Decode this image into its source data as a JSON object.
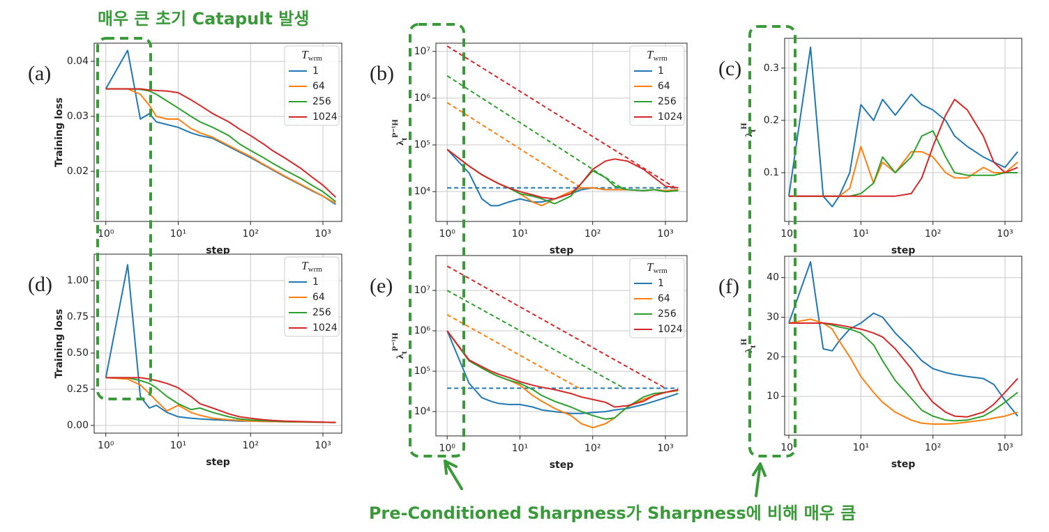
{
  "annotations": {
    "top": "매우 큰 초기 Catapult 발생",
    "bottom": "Pre-Conditioned Sharpness가 Sharpness에 비해 매우 큼"
  },
  "chart_data": [
    {
      "type": "line",
      "panel_label": "(a)",
      "xlabel": "step",
      "ylabel": "Training loss",
      "xscale": "log",
      "grid": true,
      "xlim": [
        0.69,
        1820
      ],
      "xticks": [
        {
          "value": 1,
          "label": "10⁰"
        },
        {
          "value": 10,
          "label": "10¹"
        },
        {
          "value": 100,
          "label": "10²"
        },
        {
          "value": 1000,
          "label": "10³"
        }
      ],
      "ylim": [
        0.0109,
        0.0433
      ],
      "yticks": [
        0.02,
        0.03,
        0.04
      ],
      "legend_title": "T",
      "legend_title_sub": "wrm",
      "x": [
        1,
        2,
        3,
        4,
        5,
        7,
        10,
        15,
        20,
        30,
        50,
        70,
        100,
        150,
        200,
        300,
        500,
        700,
        1000,
        1500
      ],
      "series": [
        {
          "name": "1",
          "color": "#1f77b4",
          "values": [
            0.035,
            0.042,
            0.0295,
            0.0305,
            0.029,
            0.0285,
            0.028,
            0.027,
            0.0265,
            0.026,
            0.0245,
            0.0235,
            0.0225,
            0.0212,
            0.0203,
            0.019,
            0.0175,
            0.0165,
            0.0155,
            0.014
          ]
        },
        {
          "name": "64",
          "color": "#ff7f0e",
          "values": [
            0.035,
            0.035,
            0.034,
            0.032,
            0.03,
            0.0295,
            0.0295,
            0.0278,
            0.027,
            0.0262,
            0.0247,
            0.0237,
            0.0227,
            0.0213,
            0.0204,
            0.0191,
            0.0176,
            0.0166,
            0.0155,
            0.0142
          ]
        },
        {
          "name": "256",
          "color": "#2ca02c",
          "values": [
            0.035,
            0.035,
            0.0349,
            0.0346,
            0.034,
            0.0328,
            0.0315,
            0.03,
            0.029,
            0.028,
            0.0265,
            0.025,
            0.0238,
            0.0225,
            0.0215,
            0.0202,
            0.0187,
            0.0175,
            0.0163,
            0.0145
          ]
        },
        {
          "name": "1024",
          "color": "#d62728",
          "values": [
            0.035,
            0.035,
            0.035,
            0.0348,
            0.0347,
            0.0346,
            0.0343,
            0.033,
            0.032,
            0.0305,
            0.029,
            0.0277,
            0.0265,
            0.025,
            0.0238,
            0.0224,
            0.0205,
            0.019,
            0.0175,
            0.0153
          ]
        }
      ]
    },
    {
      "type": "line",
      "panel_label": "(b)",
      "xlabel": "step",
      "ylabel": {
        "base": "λ",
        "sub": "t",
        "sup": "P⁻¹H"
      },
      "xscale": "log",
      "yscale": "log",
      "grid": true,
      "xlim": [
        0.7,
        1980
      ],
      "xticks": [
        {
          "value": 1,
          "label": "10⁰"
        },
        {
          "value": 10,
          "label": "10¹"
        },
        {
          "value": 100,
          "label": "10²"
        },
        {
          "value": 1000,
          "label": "10³"
        }
      ],
      "ylim": [
        2300,
        15000000
      ],
      "yticks": [
        {
          "value": 10000,
          "label": "10⁴"
        },
        {
          "value": 100000,
          "label": "10⁵"
        },
        {
          "value": 1000000,
          "label": "10⁶"
        },
        {
          "value": 10000000,
          "label": "10⁷"
        }
      ],
      "legend_title": "T",
      "legend_title_sub": "wrm",
      "x": [
        1,
        2,
        3,
        4,
        5,
        7,
        10,
        15,
        20,
        30,
        50,
        70,
        100,
        150,
        200,
        300,
        500,
        700,
        1000,
        1500
      ],
      "series": [
        {
          "name": "1",
          "color": "#1f77b4",
          "values": [
            80000,
            25000,
            7000,
            5000,
            5000,
            6000,
            7000,
            6000,
            6000,
            7000,
            9000,
            11000,
            12000,
            11000,
            11000,
            11000,
            10500,
            11000,
            10500,
            11000
          ]
        },
        {
          "name": "64",
          "color": "#ff7f0e",
          "values": [
            80000,
            35000,
            23000,
            18000,
            15000,
            12000,
            9000,
            6000,
            5000,
            7000,
            10000,
            12000,
            12000,
            11000,
            11000,
            11000,
            10500,
            11000,
            10500,
            11000
          ]
        },
        {
          "name": "256",
          "color": "#2ca02c",
          "values": [
            80000,
            35000,
            23000,
            18000,
            15000,
            12000,
            9000,
            8000,
            7000,
            5500,
            8000,
            15000,
            28000,
            20000,
            13000,
            11000,
            10500,
            11000,
            10000,
            10500
          ]
        },
        {
          "name": "1024",
          "color": "#d62728",
          "values": [
            80000,
            35000,
            23000,
            18000,
            15000,
            12000,
            10000,
            8500,
            7500,
            7000,
            9000,
            15000,
            30000,
            45000,
            50000,
            45000,
            30000,
            20000,
            13000,
            12000
          ]
        }
      ],
      "reference_lines": [
        {
          "color": "#1f77b4",
          "x": [
            1,
            1500
          ],
          "values": [
            12000,
            12000
          ]
        },
        {
          "color": "#ff7f0e",
          "x": [
            1,
            70
          ],
          "values": [
            800000,
            12000
          ]
        },
        {
          "color": "#2ca02c",
          "x": [
            1,
            250
          ],
          "values": [
            3000000,
            12000
          ]
        },
        {
          "color": "#d62728",
          "x": [
            1,
            1500
          ],
          "values": [
            13000000,
            11000
          ]
        }
      ]
    },
    {
      "type": "line",
      "panel_label": "(c)",
      "xlabel": "step",
      "ylabel": {
        "base": "λ",
        "sub": "t",
        "sup": "H"
      },
      "xscale": "log",
      "grid": true,
      "xlim": [
        0.875,
        1710
      ],
      "xticks": [
        {
          "value": 1,
          "label": "10⁰"
        },
        {
          "value": 10,
          "label": "10¹"
        },
        {
          "value": 100,
          "label": "10²"
        },
        {
          "value": 1000,
          "label": "10³"
        }
      ],
      "ylim": [
        0.0067,
        0.357
      ],
      "yticks": [
        0.1,
        0.2,
        0.3
      ],
      "x": [
        1,
        2,
        3,
        4,
        5,
        7,
        10,
        15,
        20,
        30,
        50,
        70,
        100,
        150,
        200,
        300,
        500,
        700,
        1000,
        1500
      ],
      "series": [
        {
          "name": "1",
          "color": "#1f77b4",
          "values": [
            0.055,
            0.34,
            0.055,
            0.035,
            0.055,
            0.1,
            0.23,
            0.2,
            0.24,
            0.21,
            0.25,
            0.23,
            0.22,
            0.2,
            0.17,
            0.15,
            0.13,
            0.12,
            0.11,
            0.14
          ]
        },
        {
          "name": "64",
          "color": "#ff7f0e",
          "values": [
            0.055,
            0.055,
            0.055,
            0.055,
            0.055,
            0.07,
            0.15,
            0.08,
            0.12,
            0.1,
            0.14,
            0.14,
            0.13,
            0.1,
            0.09,
            0.09,
            0.11,
            0.1,
            0.1,
            0.12
          ]
        },
        {
          "name": "256",
          "color": "#2ca02c",
          "values": [
            0.055,
            0.055,
            0.055,
            0.055,
            0.055,
            0.055,
            0.06,
            0.08,
            0.13,
            0.1,
            0.13,
            0.17,
            0.18,
            0.13,
            0.1,
            0.095,
            0.095,
            0.095,
            0.1,
            0.1
          ]
        },
        {
          "name": "1024",
          "color": "#d62728",
          "values": [
            0.055,
            0.055,
            0.055,
            0.055,
            0.055,
            0.055,
            0.055,
            0.055,
            0.055,
            0.055,
            0.06,
            0.09,
            0.15,
            0.21,
            0.24,
            0.22,
            0.17,
            0.12,
            0.1,
            0.11
          ]
        }
      ]
    },
    {
      "type": "line",
      "panel_label": "(d)",
      "xlabel": "step",
      "ylabel": "Training loss",
      "xscale": "log",
      "grid": true,
      "xlim": [
        0.69,
        1820
      ],
      "xticks": [
        {
          "value": 1,
          "label": "10⁰"
        },
        {
          "value": 10,
          "label": "10¹"
        },
        {
          "value": 100,
          "label": "10²"
        },
        {
          "value": 1000,
          "label": "10³"
        }
      ],
      "ylim": [
        -0.053,
        1.183
      ],
      "yticks": [
        {
          "value": 0,
          "label": "0.00"
        },
        0.25,
        {
          "value": 0.5,
          "label": "0.50"
        },
        0.75,
        {
          "value": 1,
          "label": "1.00"
        }
      ],
      "legend_title": "T",
      "legend_title_sub": "wrm",
      "x": [
        1,
        2,
        3,
        4,
        5,
        7,
        10,
        15,
        20,
        30,
        50,
        70,
        100,
        150,
        200,
        300,
        500,
        700,
        1000,
        1500
      ],
      "series": [
        {
          "name": "1",
          "color": "#1f77b4",
          "values": [
            0.33,
            1.11,
            0.2,
            0.12,
            0.14,
            0.09,
            0.06,
            0.05,
            0.045,
            0.04,
            0.035,
            0.03,
            0.03,
            0.028,
            0.027,
            0.025,
            0.024,
            0.023,
            0.022,
            0.02
          ]
        },
        {
          "name": "64",
          "color": "#ff7f0e",
          "values": [
            0.33,
            0.32,
            0.28,
            0.22,
            0.17,
            0.1,
            0.14,
            0.09,
            0.07,
            0.05,
            0.04,
            0.035,
            0.03,
            0.028,
            0.027,
            0.025,
            0.024,
            0.023,
            0.022,
            0.02
          ]
        },
        {
          "name": "256",
          "color": "#2ca02c",
          "values": [
            0.33,
            0.33,
            0.31,
            0.29,
            0.26,
            0.2,
            0.15,
            0.11,
            0.12,
            0.09,
            0.06,
            0.045,
            0.038,
            0.033,
            0.03,
            0.027,
            0.025,
            0.024,
            0.022,
            0.02
          ]
        },
        {
          "name": "1024",
          "color": "#d62728",
          "values": [
            0.33,
            0.33,
            0.33,
            0.32,
            0.31,
            0.29,
            0.26,
            0.2,
            0.15,
            0.12,
            0.08,
            0.06,
            0.05,
            0.04,
            0.035,
            0.03,
            0.027,
            0.025,
            0.023,
            0.021
          ]
        }
      ]
    },
    {
      "type": "line",
      "panel_label": "(e)",
      "xlabel": "step",
      "ylabel": {
        "base": "λ",
        "sub": "t",
        "sup": "P⁻¹H"
      },
      "xscale": "log",
      "yscale": "log",
      "grid": true,
      "xlim": [
        0.7,
        1980
      ],
      "xticks": [
        {
          "value": 1,
          "label": "10⁰"
        },
        {
          "value": 10,
          "label": "10¹"
        },
        {
          "value": 100,
          "label": "10²"
        },
        {
          "value": 1000,
          "label": "10³"
        }
      ],
      "ylim": [
        2500,
        73000000
      ],
      "yticks": [
        {
          "value": 10000,
          "label": "10⁴"
        },
        {
          "value": 100000,
          "label": "10⁵"
        },
        {
          "value": 1000000,
          "label": "10⁶"
        },
        {
          "value": 10000000,
          "label": "10⁷"
        }
      ],
      "legend_title": "T",
      "legend_title_sub": "wrm",
      "x": [
        1,
        2,
        3,
        4,
        5,
        7,
        10,
        15,
        20,
        30,
        50,
        70,
        100,
        150,
        200,
        300,
        500,
        700,
        1000,
        1500
      ],
      "series": [
        {
          "name": "1",
          "color": "#1f77b4",
          "values": [
            1000000,
            50000,
            22000,
            18000,
            16000,
            15000,
            15000,
            13000,
            11000,
            10000,
            9000,
            9000,
            9500,
            10000,
            11000,
            12000,
            15000,
            18000,
            22000,
            28000
          ]
        },
        {
          "name": "64",
          "color": "#ff7f0e",
          "values": [
            1000000,
            180000,
            120000,
            90000,
            75000,
            60000,
            45000,
            25000,
            18000,
            12000,
            8000,
            5000,
            4000,
            5000,
            7000,
            13000,
            20000,
            25000,
            30000,
            33000
          ]
        },
        {
          "name": "256",
          "color": "#2ca02c",
          "values": [
            1000000,
            180000,
            120000,
            90000,
            75000,
            60000,
            50000,
            35000,
            25000,
            18000,
            13000,
            10000,
            8000,
            6500,
            7000,
            13000,
            23000,
            28000,
            30000,
            34000
          ]
        },
        {
          "name": "1024",
          "color": "#d62728",
          "values": [
            1000000,
            190000,
            130000,
            100000,
            85000,
            70000,
            55000,
            45000,
            40000,
            35000,
            28000,
            23000,
            20000,
            17000,
            13000,
            14000,
            18000,
            25000,
            30000,
            35000
          ]
        }
      ],
      "reference_lines": [
        {
          "color": "#1f77b4",
          "x": [
            1,
            1500
          ],
          "values": [
            38000,
            38000
          ]
        },
        {
          "color": "#ff7f0e",
          "x": [
            1,
            65
          ],
          "values": [
            2500000,
            38000
          ]
        },
        {
          "color": "#2ca02c",
          "x": [
            1,
            270
          ],
          "values": [
            10000000,
            38000
          ]
        },
        {
          "color": "#d62728",
          "x": [
            1,
            1000
          ],
          "values": [
            40000000,
            38000
          ]
        }
      ]
    },
    {
      "type": "line",
      "panel_label": "(f)",
      "xlabel": "step",
      "ylabel": {
        "base": "λ",
        "sub": "t",
        "sup": "H"
      },
      "xscale": "log",
      "grid": true,
      "xlim": [
        0.875,
        1710
      ],
      "xticks": [
        {
          "value": 1,
          "label": "10⁰"
        },
        {
          "value": 10,
          "label": "10¹"
        },
        {
          "value": 100,
          "label": "10²"
        },
        {
          "value": 1000,
          "label": "10³"
        }
      ],
      "ylim": [
        0.18,
        45.4
      ],
      "yticks": [
        10,
        20,
        30,
        40
      ],
      "x": [
        1,
        2,
        3,
        4,
        5,
        7,
        10,
        15,
        20,
        30,
        50,
        70,
        100,
        150,
        200,
        300,
        500,
        700,
        1000,
        1500
      ],
      "series": [
        {
          "name": "1",
          "color": "#1f77b4",
          "values": [
            28.5,
            44,
            22,
            21.5,
            24,
            27,
            28.5,
            31,
            30,
            26,
            22,
            19,
            17,
            16,
            15.5,
            15,
            14.5,
            13,
            9,
            5
          ]
        },
        {
          "name": "64",
          "color": "#ff7f0e",
          "values": [
            28.5,
            29.5,
            28.5,
            27,
            24,
            20,
            15,
            11,
            8.5,
            6,
            4,
            3.2,
            3,
            3,
            3.1,
            3.5,
            4,
            4.5,
            5,
            6
          ]
        },
        {
          "name": "256",
          "color": "#2ca02c",
          "values": [
            28.5,
            28.5,
            28.5,
            28,
            27.5,
            27,
            26,
            23,
            19,
            14,
            9.5,
            6.5,
            5,
            4,
            3.8,
            4,
            5,
            6.5,
            8.5,
            11
          ]
        },
        {
          "name": "1024",
          "color": "#d62728",
          "values": [
            28.5,
            28.5,
            28.5,
            28.3,
            28,
            27.5,
            27,
            26,
            25,
            22,
            17,
            12,
            8.5,
            6,
            5,
            4.8,
            6,
            8,
            11,
            14.5
          ]
        }
      ]
    }
  ]
}
